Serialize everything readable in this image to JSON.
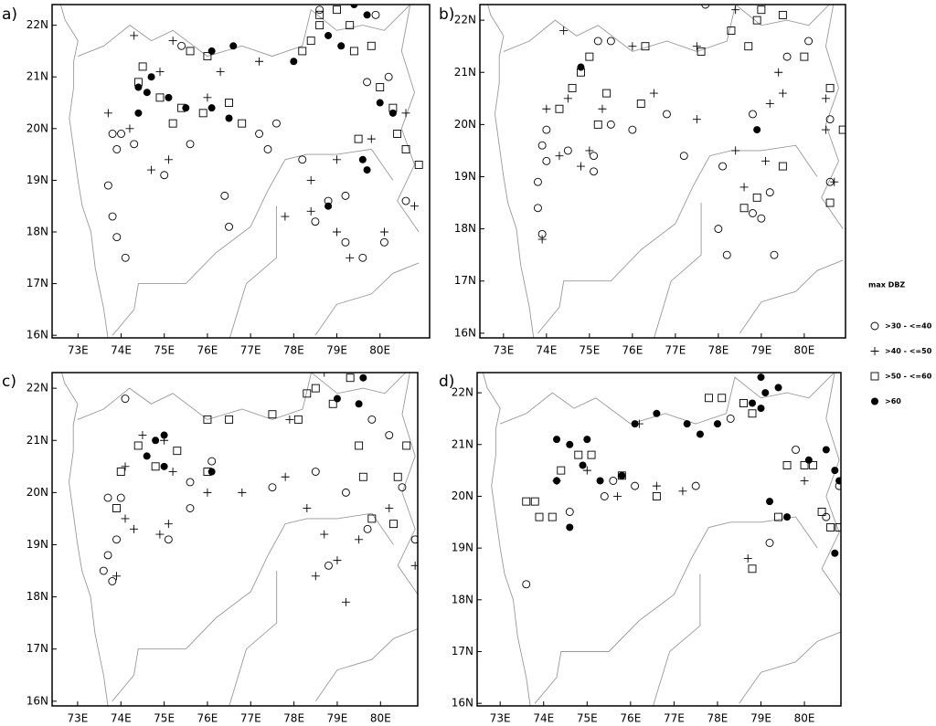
{
  "legend": {
    "title": "max DBZ",
    "items": [
      {
        "label": ">30  -  <=40",
        "marker": "circle"
      },
      {
        "label": ">40  -  <=50",
        "marker": "cross"
      },
      {
        "label": ">50  -  <=60",
        "marker": "square"
      },
      {
        "label": ">60",
        "marker": "filled"
      }
    ]
  },
  "chart_data": [
    {
      "type": "scatter",
      "panel": "a)",
      "xlim": [
        72.4,
        81.15
      ],
      "ylim": [
        15.95,
        22.4
      ],
      "xticks": [
        {
          "value": 73,
          "label": "73E"
        },
        {
          "value": 74,
          "label": "74E"
        },
        {
          "value": 75,
          "label": "75E"
        },
        {
          "value": 76,
          "label": "76E"
        },
        {
          "value": 77,
          "label": "77E"
        },
        {
          "value": 78,
          "label": "78E"
        },
        {
          "value": 79,
          "label": "79E"
        },
        {
          "value": 80,
          "label": "80E"
        }
      ],
      "yticks": [
        {
          "value": 16,
          "label": "16N"
        },
        {
          "value": 17,
          "label": "17N"
        },
        {
          "value": 18,
          "label": "18N"
        },
        {
          "value": 19,
          "label": "19N"
        },
        {
          "value": 20,
          "label": "20N"
        },
        {
          "value": 21,
          "label": "21N"
        },
        {
          "value": 22,
          "label": "22N"
        }
      ],
      "series": [
        {
          "marker": "circle",
          "x": [
            73.8,
            73.9,
            73.7,
            73.8,
            73.9,
            74.1,
            74.0,
            74.3,
            75.0,
            75.6,
            76.4,
            76.5,
            77.2,
            77.6,
            78.2,
            78.5,
            78.8,
            79.2,
            79.2,
            79.6,
            80.1,
            80.2,
            79.7,
            78.6,
            75.4,
            77.4,
            80.6,
            79.9
          ],
          "values": [
            19.9,
            19.6,
            18.9,
            18.3,
            17.9,
            17.5,
            19.9,
            19.7,
            19.1,
            19.7,
            18.7,
            18.1,
            19.9,
            20.1,
            19.4,
            18.2,
            18.6,
            18.7,
            17.8,
            17.5,
            17.8,
            21.0,
            20.9,
            22.3,
            21.6,
            19.6,
            18.6,
            22.2
          ]
        },
        {
          "marker": "cross",
          "x": [
            74.3,
            75.2,
            74.9,
            74.2,
            73.7,
            74.7,
            75.1,
            76.3,
            77.2,
            78.4,
            78.4,
            79.0,
            79.3,
            79.0,
            79.8,
            80.1,
            80.6,
            80.8,
            77.8,
            76.0
          ],
          "values": [
            21.8,
            21.7,
            21.1,
            20.0,
            20.3,
            19.2,
            19.4,
            21.1,
            21.3,
            19.0,
            18.4,
            18.0,
            17.5,
            19.4,
            19.8,
            18.0,
            20.3,
            18.5,
            18.3,
            20.6
          ]
        },
        {
          "marker": "square",
          "x": [
            74.5,
            74.4,
            74.9,
            75.4,
            75.2,
            75.9,
            76.5,
            76.8,
            78.2,
            78.4,
            78.6,
            78.6,
            79.0,
            79.3,
            79.4,
            79.8,
            80.0,
            80.3,
            80.4,
            80.6,
            80.9,
            79.5,
            76.0,
            75.6
          ],
          "values": [
            21.2,
            20.9,
            20.6,
            20.4,
            20.1,
            20.3,
            20.5,
            20.1,
            21.5,
            21.7,
            22.0,
            22.2,
            22.3,
            22.0,
            21.5,
            21.6,
            20.8,
            20.4,
            19.9,
            19.6,
            19.3,
            19.8,
            21.4,
            21.5
          ]
        },
        {
          "marker": "filled",
          "x": [
            74.4,
            74.6,
            74.7,
            75.1,
            74.4,
            75.5,
            76.1,
            76.5,
            76.1,
            76.6,
            78.0,
            78.8,
            79.1,
            79.4,
            79.7,
            80.0,
            79.6,
            79.7,
            78.8,
            80.3
          ],
          "values": [
            20.8,
            20.7,
            21.0,
            20.6,
            20.3,
            20.4,
            20.4,
            20.2,
            21.5,
            21.6,
            21.3,
            21.8,
            21.6,
            22.4,
            22.2,
            20.5,
            19.4,
            19.2,
            18.5,
            20.3
          ]
        }
      ]
    },
    {
      "type": "scatter",
      "panel": "b)",
      "xlim": [
        72.45,
        80.96
      ],
      "ylim": [
        15.91,
        22.3
      ],
      "xticks": [
        {
          "value": 73,
          "label": "73E"
        },
        {
          "value": 74,
          "label": "74E"
        },
        {
          "value": 75,
          "label": "75E"
        },
        {
          "value": 76,
          "label": "76E"
        },
        {
          "value": 77,
          "label": "77E"
        },
        {
          "value": 78,
          "label": "78E"
        },
        {
          "value": 79,
          "label": "79E"
        },
        {
          "value": 80,
          "label": "80E"
        }
      ],
      "yticks": [
        {
          "value": 16,
          "label": "16N"
        },
        {
          "value": 17,
          "label": "17N"
        },
        {
          "value": 18,
          "label": "18N"
        },
        {
          "value": 19,
          "label": "19N"
        },
        {
          "value": 20,
          "label": "20N"
        },
        {
          "value": 21,
          "label": "21N"
        },
        {
          "value": 22,
          "label": "22N"
        }
      ],
      "series": [
        {
          "marker": "circle",
          "x": [
            73.8,
            73.8,
            73.9,
            74.0,
            74.0,
            73.9,
            74.5,
            75.1,
            75.1,
            75.5,
            76.0,
            77.2,
            78.1,
            78.0,
            78.2,
            78.8,
            79.0,
            79.3,
            79.2,
            78.8,
            79.6,
            80.6,
            75.2,
            75.5,
            80.1,
            77.7,
            76.8,
            80.6
          ],
          "values": [
            18.9,
            18.4,
            17.9,
            19.3,
            19.9,
            19.6,
            19.5,
            19.4,
            19.1,
            20.0,
            19.9,
            19.4,
            19.2,
            18.0,
            17.5,
            18.3,
            18.2,
            17.5,
            18.7,
            20.2,
            21.3,
            20.1,
            21.6,
            21.6,
            21.6,
            22.3,
            20.2,
            18.9
          ]
        },
        {
          "marker": "cross",
          "x": [
            73.9,
            74.3,
            74.8,
            75.0,
            74.0,
            74.5,
            75.3,
            76.5,
            77.5,
            78.4,
            78.6,
            79.1,
            79.2,
            79.4,
            79.5,
            80.5,
            80.7,
            74.4,
            77.5,
            78.4,
            80.5,
            76.0
          ],
          "values": [
            17.8,
            19.4,
            19.2,
            19.5,
            20.3,
            20.5,
            20.3,
            20.6,
            20.1,
            19.5,
            18.8,
            19.3,
            20.4,
            21.0,
            20.6,
            19.9,
            18.9,
            21.8,
            21.5,
            22.2,
            20.5,
            21.5
          ]
        },
        {
          "marker": "square",
          "x": [
            74.3,
            74.6,
            74.8,
            75.4,
            75.2,
            76.2,
            76.3,
            77.6,
            78.3,
            78.7,
            78.9,
            79.0,
            79.5,
            80.0,
            80.6,
            80.9,
            80.6,
            79.5,
            78.9,
            78.6,
            75.0
          ],
          "values": [
            20.3,
            20.7,
            21.0,
            20.6,
            20.0,
            20.4,
            21.5,
            21.4,
            21.8,
            21.5,
            22.0,
            22.2,
            22.1,
            21.3,
            20.7,
            19.9,
            18.5,
            19.2,
            18.6,
            18.4,
            21.3
          ]
        },
        {
          "marker": "filled",
          "x": [
            74.8,
            78.9
          ],
          "values": [
            21.1,
            19.9
          ]
        }
      ]
    },
    {
      "type": "scatter",
      "panel": "c)",
      "xlim": [
        72.41,
        80.86
      ],
      "ylim": [
        15.91,
        22.3
      ],
      "xticks": [
        {
          "value": 73,
          "label": "73E"
        },
        {
          "value": 74,
          "label": "74E"
        },
        {
          "value": 75,
          "label": "75E"
        },
        {
          "value": 76,
          "label": "76E"
        },
        {
          "value": 77,
          "label": "77E"
        },
        {
          "value": 78,
          "label": "78E"
        },
        {
          "value": 79,
          "label": "79E"
        },
        {
          "value": 80,
          "label": "80E"
        }
      ],
      "yticks": [
        {
          "value": 16,
          "label": "16N"
        },
        {
          "value": 17,
          "label": "17N"
        },
        {
          "value": 18,
          "label": "18N"
        },
        {
          "value": 19,
          "label": "19N"
        },
        {
          "value": 20,
          "label": "20N"
        },
        {
          "value": 21,
          "label": "21N"
        },
        {
          "value": 22,
          "label": "22N"
        }
      ],
      "series": [
        {
          "marker": "circle",
          "x": [
            73.6,
            73.7,
            73.8,
            73.9,
            73.7,
            74.0,
            75.1,
            75.6,
            77.5,
            78.5,
            78.8,
            79.2,
            79.7,
            80.2,
            74.1,
            75.6,
            76.1,
            80.5,
            80.8,
            79.8
          ],
          "values": [
            18.5,
            18.8,
            18.3,
            19.1,
            19.9,
            19.9,
            19.1,
            19.7,
            20.1,
            20.4,
            18.6,
            20.0,
            19.3,
            21.1,
            21.8,
            20.2,
            20.6,
            20.1,
            19.1,
            21.4
          ]
        },
        {
          "marker": "cross",
          "x": [
            73.9,
            74.1,
            74.3,
            74.9,
            75.1,
            74.1,
            74.5,
            75.2,
            76.0,
            76.8,
            77.8,
            78.3,
            78.5,
            78.7,
            79.0,
            79.2,
            79.5,
            80.2,
            80.8,
            78.7,
            75.0,
            77.9
          ],
          "values": [
            18.4,
            19.5,
            19.3,
            19.2,
            19.4,
            20.5,
            21.1,
            20.4,
            20.0,
            20.0,
            20.3,
            19.7,
            18.4,
            19.2,
            18.7,
            17.9,
            19.1,
            19.7,
            18.6,
            22.3,
            21.0,
            21.4
          ]
        },
        {
          "marker": "square",
          "x": [
            73.9,
            74.0,
            74.4,
            74.8,
            75.3,
            76.0,
            76.5,
            77.5,
            78.1,
            78.3,
            78.5,
            78.9,
            79.3,
            79.5,
            79.6,
            79.8,
            80.4,
            80.6,
            80.3,
            76.0
          ],
          "values": [
            19.7,
            20.4,
            20.9,
            20.5,
            20.8,
            21.4,
            21.4,
            21.5,
            21.4,
            21.9,
            22.0,
            21.7,
            22.2,
            20.9,
            20.3,
            19.5,
            20.3,
            20.9,
            19.4,
            20.4
          ]
        },
        {
          "marker": "filled",
          "x": [
            74.6,
            74.8,
            75.0,
            75.0,
            76.1,
            79.0,
            79.5,
            79.6
          ],
          "values": [
            20.7,
            21.0,
            21.1,
            20.5,
            20.4,
            21.8,
            21.7,
            22.2
          ]
        }
      ]
    },
    {
      "type": "scatter",
      "panel": "d)",
      "xlim": [
        72.47,
        80.84
      ],
      "ylim": [
        15.95,
        22.39
      ],
      "xticks": [
        {
          "value": 73,
          "label": "73E"
        },
        {
          "value": 74,
          "label": "74E"
        },
        {
          "value": 75,
          "label": "75E"
        },
        {
          "value": 76,
          "label": "76E"
        },
        {
          "value": 77,
          "label": "77E"
        },
        {
          "value": 78,
          "label": "78E"
        },
        {
          "value": 79,
          "label": "79E"
        },
        {
          "value": 80,
          "label": "80E"
        }
      ],
      "yticks": [
        {
          "value": 16,
          "label": "16N"
        },
        {
          "value": 17,
          "label": "17N"
        },
        {
          "value": 18,
          "label": "18N"
        },
        {
          "value": 19,
          "label": "19N"
        },
        {
          "value": 20,
          "label": "20N"
        },
        {
          "value": 21,
          "label": "21N"
        },
        {
          "value": 22,
          "label": "22N"
        }
      ],
      "series": [
        {
          "marker": "circle",
          "x": [
            73.6,
            74.6,
            75.6,
            76.1,
            77.5,
            78.3,
            79.2,
            79.8,
            80.5,
            80.8,
            75.4
          ],
          "values": [
            18.3,
            19.7,
            20.3,
            20.2,
            20.2,
            21.5,
            19.1,
            20.9,
            19.6,
            20.2,
            20.0
          ]
        },
        {
          "marker": "cross",
          "x": [
            74.3,
            75.0,
            76.6,
            77.2,
            78.7,
            80.0,
            75.7,
            76.2
          ],
          "values": [
            20.3,
            20.5,
            20.2,
            20.1,
            18.8,
            20.3,
            20.0,
            21.4
          ]
        },
        {
          "marker": "square",
          "x": [
            73.6,
            73.8,
            73.9,
            74.2,
            74.4,
            74.8,
            75.1,
            75.8,
            76.6,
            77.8,
            78.1,
            78.6,
            78.8,
            79.6,
            80.0,
            80.2,
            80.4,
            80.6,
            80.8,
            78.8,
            79.4
          ],
          "values": [
            19.9,
            19.9,
            19.6,
            19.6,
            20.5,
            20.8,
            20.8,
            20.4,
            20.0,
            21.9,
            21.9,
            21.8,
            21.6,
            20.6,
            20.6,
            20.6,
            19.7,
            19.4,
            19.4,
            18.6,
            19.6
          ]
        },
        {
          "marker": "filled",
          "x": [
            74.3,
            74.3,
            74.6,
            75.0,
            74.9,
            75.3,
            75.8,
            76.1,
            76.6,
            77.3,
            77.6,
            78.0,
            78.8,
            79.0,
            79.1,
            79.4,
            79.0,
            80.1,
            80.5,
            80.7,
            80.8,
            79.2,
            79.6,
            80.7,
            74.6
          ],
          "values": [
            20.3,
            21.1,
            21.0,
            21.1,
            20.6,
            20.3,
            20.4,
            21.4,
            21.6,
            21.4,
            21.2,
            21.4,
            21.8,
            22.3,
            22.0,
            22.1,
            21.7,
            20.7,
            20.9,
            20.5,
            20.3,
            19.9,
            19.6,
            18.9,
            19.4
          ]
        }
      ]
    }
  ]
}
